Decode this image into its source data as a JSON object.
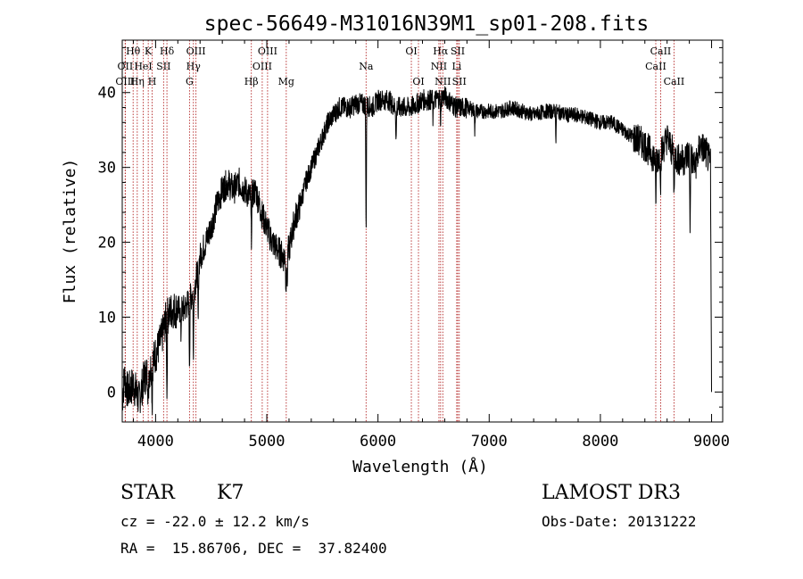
{
  "chart_data": {
    "type": "line",
    "title": "spec-56649-M31016N39M1_sp01-208.fits",
    "xlabel": "Wavelength (Å)",
    "ylabel": "Flux (relative)",
    "xlim": [
      3700,
      9100
    ],
    "ylim": [
      -4,
      47
    ],
    "xticks": [
      4000,
      5000,
      6000,
      7000,
      8000,
      9000
    ],
    "yticks": [
      0,
      10,
      20,
      30,
      40
    ],
    "grid": false,
    "series": [
      {
        "name": "flux",
        "color": "#000000",
        "anchors": [
          [
            3700,
            -1
          ],
          [
            3720,
            2
          ],
          [
            3750,
            0
          ],
          [
            3800,
            1
          ],
          [
            3850,
            -1
          ],
          [
            3900,
            2
          ],
          [
            3950,
            3
          ],
          [
            4000,
            5
          ],
          [
            4050,
            7
          ],
          [
            4100,
            10
          ],
          [
            4150,
            11
          ],
          [
            4200,
            11
          ],
          [
            4250,
            11
          ],
          [
            4300,
            12
          ],
          [
            4350,
            14
          ],
          [
            4400,
            18
          ],
          [
            4450,
            20
          ],
          [
            4500,
            22
          ],
          [
            4550,
            25
          ],
          [
            4600,
            27
          ],
          [
            4650,
            28
          ],
          [
            4700,
            27
          ],
          [
            4750,
            28
          ],
          [
            4800,
            27
          ],
          [
            4850,
            26
          ],
          [
            4900,
            27
          ],
          [
            4950,
            24
          ],
          [
            5000,
            22
          ],
          [
            5050,
            20
          ],
          [
            5100,
            19
          ],
          [
            5150,
            18
          ],
          [
            5200,
            19
          ],
          [
            5250,
            23
          ],
          [
            5300,
            25
          ],
          [
            5350,
            28
          ],
          [
            5400,
            30
          ],
          [
            5450,
            32
          ],
          [
            5500,
            34
          ],
          [
            5550,
            36
          ],
          [
            5600,
            37
          ],
          [
            5650,
            38
          ],
          [
            5700,
            38
          ],
          [
            5750,
            38
          ],
          [
            5800,
            38.5
          ],
          [
            5850,
            38.5
          ],
          [
            5950,
            38
          ],
          [
            6000,
            39
          ],
          [
            6050,
            39
          ],
          [
            6100,
            39
          ],
          [
            6150,
            38
          ],
          [
            6200,
            38
          ],
          [
            6250,
            38
          ],
          [
            6300,
            38
          ],
          [
            6400,
            39
          ],
          [
            6500,
            39
          ],
          [
            6600,
            39.5
          ],
          [
            6700,
            38
          ],
          [
            6800,
            38
          ],
          [
            6900,
            37.5
          ],
          [
            7000,
            37.5
          ],
          [
            7100,
            37.5
          ],
          [
            7200,
            38
          ],
          [
            7300,
            37.5
          ],
          [
            7400,
            37
          ],
          [
            7500,
            37.5
          ],
          [
            7600,
            37.5
          ],
          [
            7700,
            37
          ],
          [
            7800,
            37
          ],
          [
            7900,
            36.5
          ],
          [
            8000,
            36
          ],
          [
            8100,
            36
          ],
          [
            8200,
            35
          ],
          [
            8300,
            34
          ],
          [
            8400,
            33
          ],
          [
            8450,
            32
          ],
          [
            8500,
            31
          ],
          [
            8550,
            32
          ],
          [
            8600,
            34
          ],
          [
            8650,
            32
          ],
          [
            8700,
            31
          ],
          [
            8750,
            31
          ],
          [
            8800,
            32
          ],
          [
            8850,
            30
          ],
          [
            8900,
            33
          ],
          [
            8950,
            32
          ],
          [
            9000,
            30
          ]
        ],
        "features": [
          [
            3934,
            -2.5
          ],
          [
            3969,
            -2
          ],
          [
            4102,
            -1
          ],
          [
            4227,
            7
          ],
          [
            4305,
            3
          ],
          [
            4340,
            4
          ],
          [
            4383,
            8
          ],
          [
            4861,
            20
          ],
          [
            5172,
            13
          ],
          [
            5183,
            13.5
          ],
          [
            5893,
            20
          ],
          [
            6163,
            33
          ],
          [
            6495,
            36
          ],
          [
            6563,
            36
          ],
          [
            6870,
            35
          ],
          [
            7600,
            34
          ],
          [
            8498,
            24.5
          ],
          [
            8542,
            28
          ],
          [
            8662,
            26
          ],
          [
            8806,
            21
          ],
          [
            9000,
            0
          ]
        ]
      }
    ],
    "lines": [
      {
        "label": "Hθ",
        "x": 3798,
        "row": 0
      },
      {
        "label": "OII",
        "x": 3727,
        "row": 1
      },
      {
        "label": "OIII",
        "x": 3727,
        "row": 2
      },
      {
        "label": "Hη",
        "x": 3835,
        "row": 2
      },
      {
        "label": "HeI",
        "x": 3889,
        "row": 1
      },
      {
        "label": "K",
        "x": 3934,
        "row": 0
      },
      {
        "label": "H",
        "x": 3969,
        "row": 2
      },
      {
        "label": "SII",
        "x": 4072,
        "row": 1
      },
      {
        "label": "Hδ",
        "x": 4102,
        "row": 0
      },
      {
        "label": "G",
        "x": 4305,
        "row": 2
      },
      {
        "label": "OIII",
        "x": 4363,
        "row": 0
      },
      {
        "label": "Hγ",
        "x": 4340,
        "row": 1
      },
      {
        "label": "Hβ",
        "x": 4861,
        "row": 2
      },
      {
        "label": "OIII",
        "x": 4959,
        "row": 1
      },
      {
        "label": "OIII",
        "x": 5007,
        "row": 0
      },
      {
        "label": "Mg",
        "x": 5175,
        "row": 2
      },
      {
        "label": "Na",
        "x": 5893,
        "row": 1
      },
      {
        "label": "OI",
        "x": 6300,
        "row": 0
      },
      {
        "label": "OI",
        "x": 6364,
        "row": 2
      },
      {
        "label": "Hα",
        "x": 6563,
        "row": 0
      },
      {
        "label": "NII",
        "x": 6548,
        "row": 1
      },
      {
        "label": "NII",
        "x": 6583,
        "row": 2
      },
      {
        "label": "Li",
        "x": 6708,
        "row": 1
      },
      {
        "label": "SII",
        "x": 6717,
        "row": 0
      },
      {
        "label": "SII",
        "x": 6731,
        "row": 2
      },
      {
        "label": "CaII",
        "x": 8542,
        "row": 0
      },
      {
        "label": "CaII",
        "x": 8498,
        "row": 1
      },
      {
        "label": "CaII",
        "x": 8662,
        "row": 2
      }
    ]
  },
  "info": {
    "object_class": "STAR",
    "subclass": "K7",
    "survey": "LAMOST DR3",
    "redshift": "cz = -22.0 ± 12.2 km/s",
    "obs_date": "Obs-Date: 20131222",
    "coords": "RA =  15.86706, DEC =  37.82400"
  }
}
